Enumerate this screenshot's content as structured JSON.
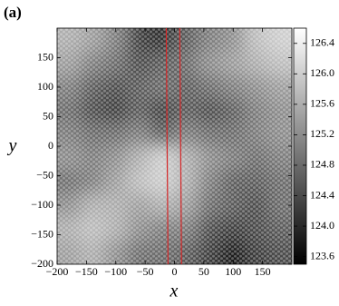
{
  "chart_data": {
    "type": "heatmap",
    "panel_label": "(a)",
    "x_label": "x",
    "y_label": "y",
    "xlim": [
      -200,
      200
    ],
    "ylim": [
      -200,
      200
    ],
    "xticks": [
      {
        "value": -200,
        "label": "−200"
      },
      {
        "value": -150,
        "label": "−150"
      },
      {
        "value": -100,
        "label": "−100"
      },
      {
        "value": -50,
        "label": "−50"
      },
      0,
      50,
      100,
      150
    ],
    "yticks": [
      {
        "value": -200,
        "label": "−200"
      },
      {
        "value": -150,
        "label": "−150"
      },
      {
        "value": -100,
        "label": "−100"
      },
      {
        "value": -50,
        "label": "−50"
      },
      0,
      50,
      100,
      150
    ],
    "colormap": "gray",
    "zlim": [
      123.5,
      126.6
    ],
    "zticks": [
      123.6,
      124.0,
      124.4,
      124.8,
      125.2,
      125.6,
      126.0,
      126.4
    ],
    "zticks_labels": [
      "123.6",
      "124.0",
      "124.4",
      "124.8",
      "125.2",
      "125.6",
      "126.0",
      "126.4"
    ],
    "z": [
      [
        125.6,
        125.4,
        125.0,
        124.2,
        124.0,
        124.6,
        125.0,
        125.2,
        125.8,
        126.0
      ],
      [
        125.4,
        125.0,
        124.8,
        124.4,
        124.6,
        124.8,
        125.2,
        125.4,
        125.6,
        125.8
      ],
      [
        125.0,
        124.6,
        124.4,
        124.6,
        124.8,
        124.6,
        124.8,
        125.0,
        125.2,
        125.4
      ],
      [
        124.8,
        124.4,
        124.2,
        124.6,
        124.2,
        124.6,
        124.4,
        124.6,
        125.0,
        125.2
      ],
      [
        125.0,
        124.8,
        124.8,
        125.0,
        124.6,
        125.0,
        124.8,
        124.8,
        125.0,
        125.2
      ],
      [
        125.2,
        125.0,
        125.2,
        125.6,
        126.0,
        125.6,
        125.2,
        125.0,
        124.8,
        125.0
      ],
      [
        124.8,
        125.0,
        125.4,
        125.8,
        126.0,
        125.6,
        125.0,
        124.6,
        124.6,
        124.8
      ],
      [
        125.2,
        125.6,
        125.6,
        125.4,
        125.6,
        125.4,
        124.8,
        124.6,
        124.4,
        124.8
      ],
      [
        125.6,
        125.8,
        125.6,
        125.2,
        125.0,
        125.0,
        124.4,
        124.2,
        124.4,
        124.6
      ],
      [
        125.4,
        125.6,
        125.2,
        124.8,
        124.8,
        124.6,
        124.2,
        123.8,
        124.2,
        124.4
      ]
    ],
    "lines": [
      {
        "x": [
          -14,
          -11
        ],
        "y": [
          200,
          -200
        ],
        "color": "#d62728"
      },
      {
        "x": [
          9,
          12
        ],
        "y": [
          200,
          -200
        ],
        "color": "#d62728"
      }
    ]
  }
}
